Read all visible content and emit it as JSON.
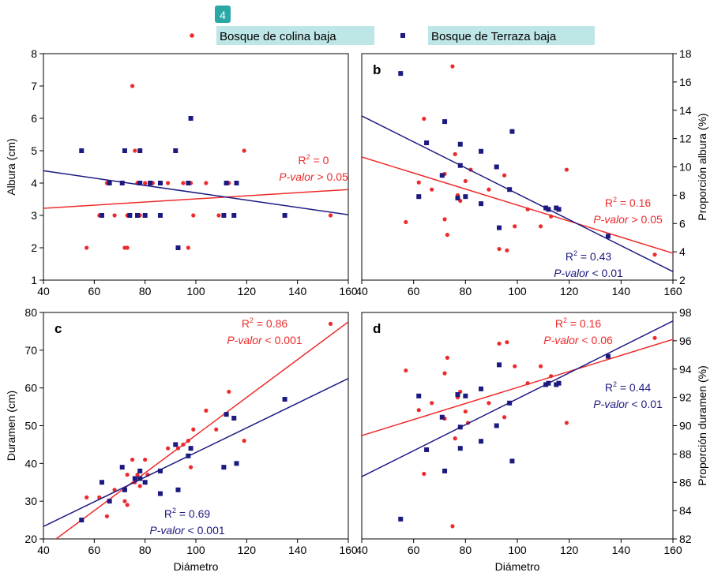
{
  "figure_number": "4",
  "colors": {
    "red": "#ee2b2b",
    "blue": "#1c1a80",
    "legend_bg": "#bfe6e6",
    "badge": "#2aa8a8"
  },
  "chart_data": [
    {
      "id": "a",
      "panel_letter": "",
      "type": "scatter",
      "xlabel": "",
      "ylabel": "Albura (cm)",
      "y_axis_side": "left",
      "xlim": [
        40,
        160
      ],
      "ylim": [
        1,
        8
      ],
      "xticks": [
        40,
        60,
        80,
        100,
        120,
        140,
        160
      ],
      "yticks": [
        1,
        2,
        3,
        4,
        5,
        6,
        7,
        8
      ],
      "series": [
        {
          "name": "Bosque de colina baja",
          "color": "#ee2b2b",
          "marker": "circle",
          "points": [
            [
              57,
              2
            ],
            [
              62,
              3
            ],
            [
              65,
              4
            ],
            [
              68,
              3
            ],
            [
              72,
              2
            ],
            [
              73,
              3
            ],
            [
              73,
              2
            ],
            [
              75,
              7
            ],
            [
              76,
              5
            ],
            [
              77,
              4
            ],
            [
              78,
              3
            ],
            [
              80,
              4
            ],
            [
              83,
              4
            ],
            [
              86,
              3
            ],
            [
              89,
              4
            ],
            [
              93,
              2
            ],
            [
              95,
              4
            ],
            [
              97,
              2
            ],
            [
              98,
              4
            ],
            [
              99,
              3
            ],
            [
              104,
              4
            ],
            [
              109,
              3
            ],
            [
              113,
              4
            ],
            [
              119,
              5
            ],
            [
              153,
              3
            ]
          ],
          "trend": {
            "x": [
              40,
              160
            ],
            "y": [
              3.22,
              3.8
            ]
          },
          "stats": [
            {
              "r2": "0",
              "p": "> 0.05"
            }
          ]
        },
        {
          "name": "Bosque de Terraza baja",
          "color": "#1c1a80",
          "marker": "square",
          "points": [
            [
              55,
              5
            ],
            [
              63,
              3
            ],
            [
              66,
              4
            ],
            [
              71,
              4
            ],
            [
              72,
              5
            ],
            [
              74,
              3
            ],
            [
              77,
              3
            ],
            [
              78,
              5
            ],
            [
              78,
              4
            ],
            [
              80,
              3
            ],
            [
              82,
              4
            ],
            [
              86,
              3
            ],
            [
              86,
              4
            ],
            [
              92,
              5
            ],
            [
              93,
              2
            ],
            [
              97,
              4
            ],
            [
              98,
              6
            ],
            [
              111,
              3
            ],
            [
              112,
              4
            ],
            [
              115,
              3
            ],
            [
              116,
              4
            ],
            [
              135,
              3
            ]
          ],
          "trend": {
            "x": [
              40,
              160
            ],
            "y": [
              4.38,
              3.02
            ]
          },
          "stats": []
        }
      ]
    },
    {
      "id": "b",
      "panel_letter": "b",
      "type": "scatter",
      "xlabel": "",
      "ylabel": "Proporción albura (%)",
      "y_axis_side": "right",
      "xlim": [
        40,
        160
      ],
      "ylim": [
        2,
        18
      ],
      "xticks": [
        40,
        60,
        80,
        100,
        120,
        140,
        160
      ],
      "yticks": [
        2,
        4,
        6,
        8,
        10,
        12,
        14,
        16,
        18
      ],
      "series": [
        {
          "name": "Bosque de colina baja",
          "color": "#ee2b2b",
          "marker": "circle",
          "points": [
            [
              57,
              6.1
            ],
            [
              62,
              8.9
            ],
            [
              64,
              13.4
            ],
            [
              67,
              8.4
            ],
            [
              72,
              6.3
            ],
            [
              72,
              9.5
            ],
            [
              73,
              5.2
            ],
            [
              75,
              17.1
            ],
            [
              76,
              10.9
            ],
            [
              77,
              8.0
            ],
            [
              78,
              7.6
            ],
            [
              80,
              9.0
            ],
            [
              82,
              9.8
            ],
            [
              89,
              8.4
            ],
            [
              93,
              4.2
            ],
            [
              95,
              9.4
            ],
            [
              96,
              4.1
            ],
            [
              99,
              5.8
            ],
            [
              104,
              7.0
            ],
            [
              109,
              5.8
            ],
            [
              113,
              6.5
            ],
            [
              119,
              9.8
            ],
            [
              153,
              3.8
            ]
          ],
          "trend": {
            "x": [
              40,
              160
            ],
            "y": [
              10.7,
              3.9
            ]
          },
          "stats": [
            {
              "r2": "0.16",
              "p": "> 0.05"
            }
          ]
        },
        {
          "name": "Bosque de Terraza baja",
          "color": "#1c1a80",
          "marker": "square",
          "points": [
            [
              55,
              16.6
            ],
            [
              62,
              7.9
            ],
            [
              65,
              11.7
            ],
            [
              71,
              9.4
            ],
            [
              72,
              13.2
            ],
            [
              77,
              7.8
            ],
            [
              78,
              11.6
            ],
            [
              78,
              10.1
            ],
            [
              80,
              7.9
            ],
            [
              86,
              11.1
            ],
            [
              86,
              7.4
            ],
            [
              92,
              10.0
            ],
            [
              93,
              5.7
            ],
            [
              97,
              8.4
            ],
            [
              98,
              12.5
            ],
            [
              111,
              7.1
            ],
            [
              112,
              7.0
            ],
            [
              115,
              7.1
            ],
            [
              116,
              7.0
            ],
            [
              135,
              5.1
            ]
          ],
          "trend": {
            "x": [
              40,
              160
            ],
            "y": [
              13.6,
              2.6
            ]
          },
          "stats": [
            {
              "r2": "0.43",
              "p": "< 0.01"
            }
          ]
        }
      ]
    },
    {
      "id": "c",
      "panel_letter": "c",
      "type": "scatter",
      "xlabel": "Diámetro",
      "ylabel": "Duramen (cm)",
      "y_axis_side": "left",
      "xlim": [
        40,
        160
      ],
      "ylim": [
        20,
        80
      ],
      "xticks": [
        40,
        60,
        80,
        100,
        120,
        140,
        160
      ],
      "yticks": [
        20,
        30,
        40,
        50,
        60,
        70,
        80
      ],
      "series": [
        {
          "name": "Bosque de colina baja",
          "color": "#ee2b2b",
          "marker": "circle",
          "points": [
            [
              57,
              31
            ],
            [
              62,
              31
            ],
            [
              65,
              26
            ],
            [
              68,
              33
            ],
            [
              72,
              30
            ],
            [
              73,
              29
            ],
            [
              73,
              37
            ],
            [
              75,
              41
            ],
            [
              76,
              35
            ],
            [
              77,
              37
            ],
            [
              78,
              34
            ],
            [
              80,
              41
            ],
            [
              81,
              37
            ],
            [
              86,
              38
            ],
            [
              89,
              44
            ],
            [
              93,
              44
            ],
            [
              95,
              45
            ],
            [
              97,
              46
            ],
            [
              98,
              39
            ],
            [
              99,
              49
            ],
            [
              104,
              54
            ],
            [
              108,
              49
            ],
            [
              113,
              59
            ],
            [
              119,
              46
            ],
            [
              153,
              77
            ]
          ],
          "trend": {
            "x": [
              40,
              160
            ],
            "y": [
              17.5,
              77.5
            ]
          },
          "stats": [
            {
              "r2": "0.86",
              "p": "< 0.001"
            }
          ]
        },
        {
          "name": "Bosque de Terraza baja",
          "color": "#1c1a80",
          "marker": "square",
          "points": [
            [
              55,
              25
            ],
            [
              63,
              35
            ],
            [
              66,
              30
            ],
            [
              71,
              39
            ],
            [
              72,
              33
            ],
            [
              76,
              36
            ],
            [
              78,
              38
            ],
            [
              78,
              36
            ],
            [
              80,
              35
            ],
            [
              86,
              32
            ],
            [
              86,
              38
            ],
            [
              92,
              45
            ],
            [
              93,
              33
            ],
            [
              97,
              42
            ],
            [
              98,
              44
            ],
            [
              111,
              39
            ],
            [
              112,
              53
            ],
            [
              115,
              52
            ],
            [
              116,
              40
            ],
            [
              135,
              57
            ]
          ],
          "trend": {
            "x": [
              40,
              160
            ],
            "y": [
              23.3,
              62.5
            ]
          },
          "stats": [
            {
              "r2": "0.69",
              "p": "< 0.001"
            }
          ]
        }
      ]
    },
    {
      "id": "d",
      "panel_letter": "d",
      "type": "scatter",
      "xlabel": "Diámetro",
      "ylabel": "Proporción duramen (%)",
      "y_axis_side": "right",
      "xlim": [
        40,
        160
      ],
      "ylim": [
        82,
        98
      ],
      "xticks": [
        40,
        60,
        80,
        100,
        120,
        140,
        160
      ],
      "yticks": [
        82,
        84,
        86,
        88,
        90,
        92,
        94,
        96,
        98
      ],
      "series": [
        {
          "name": "Bosque de colina baja",
          "color": "#ee2b2b",
          "marker": "circle",
          "points": [
            [
              57,
              93.9
            ],
            [
              62,
              91.1
            ],
            [
              64,
              86.6
            ],
            [
              67,
              91.6
            ],
            [
              72,
              93.7
            ],
            [
              72,
              90.5
            ],
            [
              73,
              94.8
            ],
            [
              75,
              82.9
            ],
            [
              76,
              89.1
            ],
            [
              77,
              92.0
            ],
            [
              78,
              92.4
            ],
            [
              80,
              91.0
            ],
            [
              81,
              90.2
            ],
            [
              89,
              91.6
            ],
            [
              93,
              95.8
            ],
            [
              95,
              90.6
            ],
            [
              96,
              95.9
            ],
            [
              99,
              94.2
            ],
            [
              104,
              93.0
            ],
            [
              109,
              94.2
            ],
            [
              113,
              93.5
            ],
            [
              119,
              90.2
            ],
            [
              153,
              96.2
            ]
          ],
          "trend": {
            "x": [
              40,
              160
            ],
            "y": [
              89.3,
              96.1
            ]
          },
          "stats": [
            {
              "r2": "0.16",
              "p": "< 0.06"
            }
          ]
        },
        {
          "name": "Bosque de Terraza baja",
          "color": "#1c1a80",
          "marker": "square",
          "points": [
            [
              55,
              83.4
            ],
            [
              62,
              92.1
            ],
            [
              65,
              88.3
            ],
            [
              71,
              90.6
            ],
            [
              72,
              86.8
            ],
            [
              77,
              92.2
            ],
            [
              78,
              88.4
            ],
            [
              78,
              89.9
            ],
            [
              80,
              92.1
            ],
            [
              86,
              88.9
            ],
            [
              86,
              92.6
            ],
            [
              92,
              90.0
            ],
            [
              93,
              94.3
            ],
            [
              97,
              91.6
            ],
            [
              98,
              87.5
            ],
            [
              111,
              92.9
            ],
            [
              112,
              93.0
            ],
            [
              115,
              92.9
            ],
            [
              116,
              93.0
            ],
            [
              135,
              94.9
            ]
          ],
          "trend": {
            "x": [
              40,
              160
            ],
            "y": [
              86.4,
              97.4
            ]
          },
          "stats": [
            {
              "r2": "0.44",
              "p": "< 0.01"
            }
          ]
        }
      ]
    }
  ]
}
